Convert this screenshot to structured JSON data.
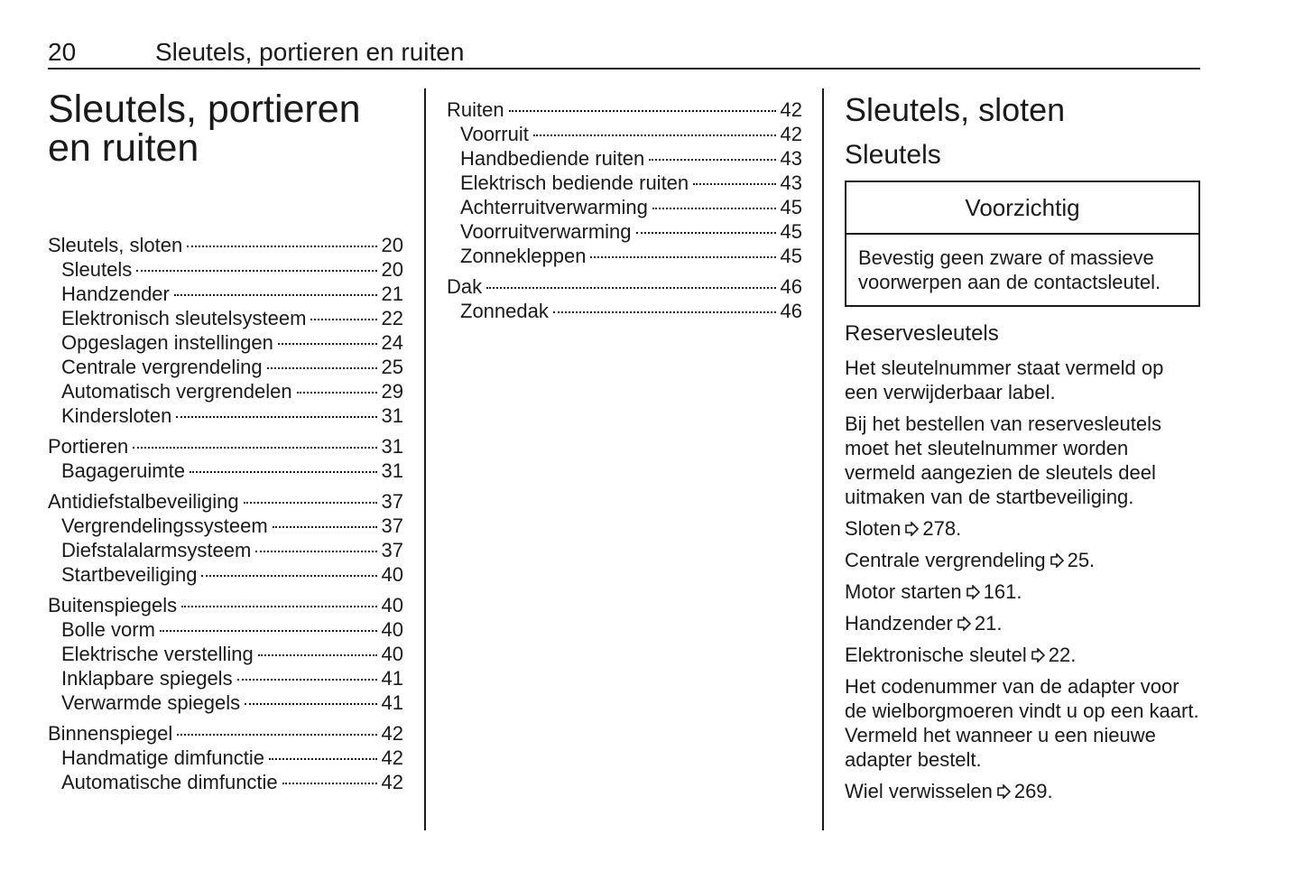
{
  "header": {
    "page_number": "20",
    "title": "Sleutels, portieren en ruiten"
  },
  "chapter_title": "Sleutels, portieren en ruiten",
  "toc": {
    "columns": [
      [
        {
          "label": "Sleutels, sloten",
          "page": "20",
          "items": [
            {
              "label": "Sleutels",
              "page": "20"
            },
            {
              "label": "Handzender",
              "page": "21"
            },
            {
              "label": "Elektronisch sleutelsysteem",
              "page": "22"
            },
            {
              "label": "Opgeslagen instellingen",
              "page": "24"
            },
            {
              "label": "Centrale vergrendeling",
              "page": "25"
            },
            {
              "label": "Automatisch vergrendelen",
              "page": "29"
            },
            {
              "label": "Kindersloten",
              "page": "31"
            }
          ]
        },
        {
          "label": "Portieren",
          "page": "31",
          "items": [
            {
              "label": "Bagageruimte",
              "page": "31"
            }
          ]
        },
        {
          "label": "Antidiefstalbeveiliging",
          "page": "37",
          "items": [
            {
              "label": "Vergrendelingssysteem",
              "page": "37"
            },
            {
              "label": "Diefstalalarmsysteem",
              "page": "37"
            },
            {
              "label": "Startbeveiliging",
              "page": "40"
            }
          ]
        },
        {
          "label": "Buitenspiegels",
          "page": "40",
          "items": [
            {
              "label": "Bolle vorm",
              "page": "40"
            },
            {
              "label": "Elektrische verstelling",
              "page": "40"
            },
            {
              "label": "Inklapbare spiegels",
              "page": "41"
            },
            {
              "label": "Verwarmde spiegels",
              "page": "41"
            }
          ]
        },
        {
          "label": "Binnenspiegel",
          "page": "42",
          "items": [
            {
              "label": "Handmatige dimfunctie",
              "page": "42"
            },
            {
              "label": "Automatische dimfunctie",
              "page": "42"
            }
          ]
        }
      ],
      [
        {
          "label": "Ruiten",
          "page": "42",
          "items": [
            {
              "label": "Voorruit",
              "page": "42"
            },
            {
              "label": "Handbediende ruiten",
              "page": "43"
            },
            {
              "label": "Elektrisch bediende ruiten",
              "page": "43"
            },
            {
              "label": "Achterruitverwarming",
              "page": "45"
            },
            {
              "label": "Voorruitverwarming",
              "page": "45"
            },
            {
              "label": "Zonnekleppen",
              "page": "45"
            }
          ]
        },
        {
          "label": "Dak",
          "page": "46",
          "items": [
            {
              "label": "Zonnedak",
              "page": "46"
            }
          ]
        }
      ]
    ]
  },
  "section": {
    "title": "Sleutels, sloten",
    "subtitle": "Sleutels",
    "caution": {
      "title": "Voorzichtig",
      "text": "Bevestig geen zware of massieve voorwerpen aan de contactsleutel."
    },
    "heading": "Reservesleutels",
    "paragraphs": [
      {
        "text": "Het sleutelnummer staat vermeld op een verwijderbaar label."
      },
      {
        "text": "Bij het bestellen van reservesleutels moet het sleutelnummer worden vermeld aangezien de sleutels deel uitmaken van de startbeveiliging."
      },
      {
        "text": "Sloten",
        "ref": "278."
      },
      {
        "text": "Centrale vergrendeling",
        "ref": "25."
      },
      {
        "text": "Motor starten",
        "ref": "161."
      },
      {
        "text": "Handzender",
        "ref": "21."
      },
      {
        "text": "Elektronische sleutel",
        "ref": "22."
      },
      {
        "text": "Het codenummer van de adapter voor de wielborgmoeren vindt u op een kaart. Vermeld het wanneer u een nieuwe adapter bestelt."
      },
      {
        "text": "Wiel verwisselen",
        "ref": "269."
      }
    ]
  }
}
